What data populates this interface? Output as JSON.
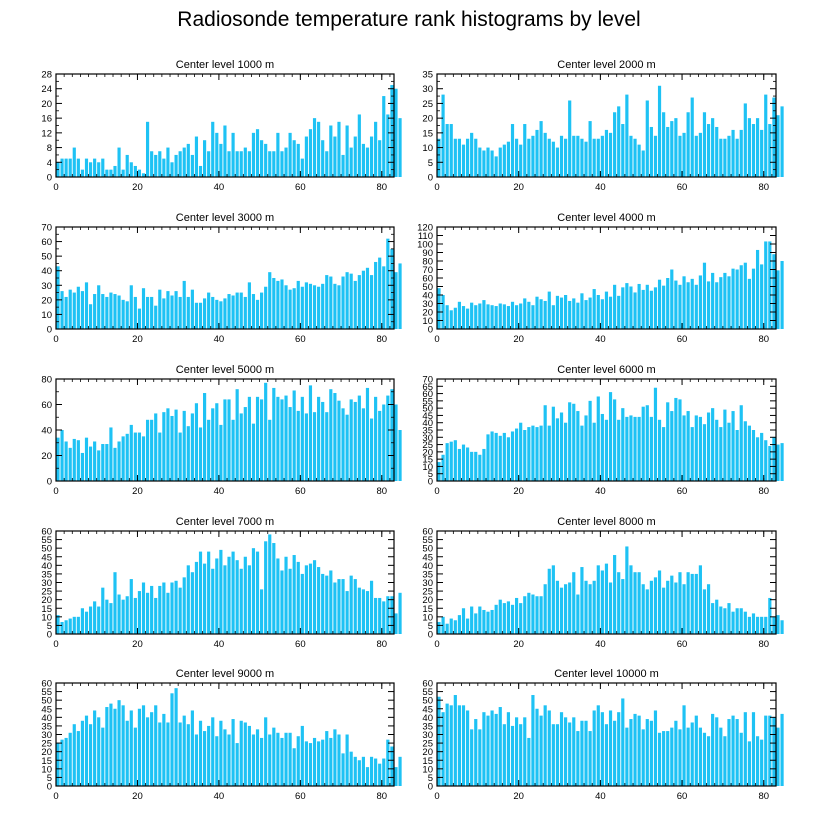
{
  "title": "Radiosonde temperature rank histograms by level",
  "colors": {
    "bar": "#1EC2F4",
    "axis": "#000000",
    "text": "#000000"
  },
  "chart_data": [
    {
      "type": "bar",
      "title": "Center level 1000 m",
      "xlim": [
        0,
        83
      ],
      "ylim": [
        0,
        28
      ],
      "xticks": [
        0,
        20,
        40,
        60,
        80
      ],
      "yticks": [
        0,
        4,
        8,
        12,
        16,
        20,
        24,
        28
      ],
      "values": [
        4,
        5,
        5,
        5,
        8,
        5,
        2,
        5,
        4,
        5,
        4,
        5,
        2,
        2,
        3,
        8,
        2,
        6,
        4,
        3,
        2,
        1,
        15,
        7,
        6,
        7,
        5,
        8,
        4,
        6,
        7,
        8,
        9,
        6,
        11,
        3,
        10,
        7,
        15,
        12,
        9,
        14,
        7,
        12,
        7,
        7,
        8,
        7,
        12,
        13,
        10,
        9,
        7,
        7,
        12,
        7,
        8,
        12,
        10,
        9,
        5,
        11,
        13,
        16,
        15,
        10,
        7,
        14,
        11,
        15,
        6,
        14,
        8,
        11,
        17,
        9,
        8,
        11,
        15,
        10,
        22,
        17,
        25,
        24,
        16
      ],
      "xlabel": "",
      "ylabel": ""
    },
    {
      "type": "bar",
      "title": "Center level 2000 m",
      "xlim": [
        0,
        83
      ],
      "ylim": [
        0,
        35
      ],
      "xticks": [
        0,
        20,
        40,
        60,
        80
      ],
      "yticks": [
        0,
        5,
        10,
        15,
        20,
        25,
        30,
        35
      ],
      "values": [
        13,
        28,
        18,
        18,
        13,
        13,
        11,
        13,
        15,
        13,
        10,
        9,
        10,
        9,
        7,
        10,
        11,
        12,
        18,
        13,
        11,
        18,
        13,
        14,
        16,
        19,
        15,
        13,
        12,
        10,
        14,
        13,
        26,
        14,
        14,
        13,
        12,
        19,
        13,
        13,
        14,
        16,
        15,
        22,
        24,
        18,
        28,
        14,
        13,
        11,
        9,
        26,
        17,
        14,
        31,
        22,
        17,
        19,
        20,
        14,
        15,
        22,
        27,
        14,
        15,
        22,
        18,
        20,
        17,
        13,
        13,
        14,
        16,
        13,
        16,
        25,
        20,
        18,
        20,
        16,
        28,
        18,
        27,
        21,
        24
      ],
      "xlabel": "",
      "ylabel": ""
    },
    {
      "type": "bar",
      "title": "Center level 3000 m",
      "xlim": [
        0,
        83
      ],
      "ylim": [
        0,
        70
      ],
      "xticks": [
        0,
        20,
        40,
        60,
        80
      ],
      "yticks": [
        0,
        10,
        20,
        30,
        40,
        50,
        60,
        70
      ],
      "values": [
        43,
        26,
        22,
        27,
        25,
        29,
        26,
        32,
        17,
        24,
        30,
        24,
        22,
        25,
        24,
        23,
        20,
        19,
        30,
        22,
        14,
        28,
        22,
        22,
        16,
        27,
        21,
        26,
        23,
        26,
        22,
        33,
        22,
        27,
        18,
        18,
        21,
        25,
        22,
        20,
        19,
        21,
        24,
        23,
        25,
        25,
        22,
        32,
        24,
        20,
        25,
        29,
        39,
        35,
        33,
        34,
        30,
        27,
        28,
        33,
        29,
        32,
        31,
        30,
        29,
        31,
        37,
        36,
        31,
        30,
        36,
        39,
        38,
        33,
        37,
        40,
        42,
        37,
        46,
        49,
        43,
        62,
        55,
        39,
        45
      ],
      "xlabel": "",
      "ylabel": ""
    },
    {
      "type": "bar",
      "title": "Center level 4000 m",
      "xlim": [
        0,
        83
      ],
      "ylim": [
        0,
        120
      ],
      "xticks": [
        0,
        20,
        40,
        60,
        80
      ],
      "yticks": [
        0,
        10,
        20,
        30,
        40,
        50,
        60,
        70,
        80,
        90,
        100,
        110,
        120
      ],
      "values": [
        48,
        40,
        28,
        22,
        25,
        32,
        27,
        24,
        31,
        28,
        30,
        34,
        29,
        28,
        27,
        30,
        29,
        27,
        32,
        28,
        30,
        36,
        32,
        28,
        38,
        35,
        33,
        44,
        28,
        39,
        37,
        40,
        33,
        36,
        31,
        42,
        34,
        37,
        47,
        40,
        35,
        44,
        38,
        52,
        39,
        49,
        54,
        50,
        43,
        53,
        46,
        52,
        45,
        49,
        58,
        51,
        60,
        70,
        57,
        52,
        62,
        55,
        59,
        52,
        63,
        78,
        56,
        66,
        55,
        61,
        66,
        62,
        71,
        70,
        75,
        78,
        59,
        71,
        93,
        76,
        103,
        103,
        88,
        69,
        80
      ],
      "xlabel": "",
      "ylabel": ""
    },
    {
      "type": "bar",
      "title": "Center level 5000 m",
      "xlim": [
        0,
        83
      ],
      "ylim": [
        0,
        80
      ],
      "xticks": [
        0,
        20,
        40,
        60,
        80
      ],
      "yticks": [
        0,
        20,
        40,
        60,
        80
      ],
      "values": [
        34,
        40,
        31,
        26,
        33,
        32,
        22,
        34,
        27,
        31,
        24,
        29,
        29,
        42,
        26,
        31,
        35,
        37,
        44,
        38,
        38,
        35,
        48,
        48,
        53,
        38,
        54,
        57,
        51,
        56,
        38,
        55,
        43,
        53,
        61,
        42,
        69,
        48,
        57,
        61,
        44,
        64,
        64,
        48,
        72,
        53,
        58,
        66,
        45,
        66,
        64,
        77,
        48,
        73,
        66,
        64,
        67,
        58,
        71,
        55,
        66,
        53,
        75,
        54,
        66,
        62,
        54,
        72,
        69,
        63,
        57,
        52,
        64,
        62,
        67,
        57,
        73,
        49,
        66,
        55,
        60,
        67,
        72,
        60,
        40
      ],
      "xlabel": "",
      "ylabel": ""
    },
    {
      "type": "bar",
      "title": "Center level 6000 m",
      "xlim": [
        0,
        83
      ],
      "ylim": [
        0,
        70
      ],
      "xticks": [
        0,
        20,
        40,
        60,
        80
      ],
      "yticks": [
        0,
        5,
        10,
        15,
        20,
        25,
        30,
        35,
        40,
        45,
        50,
        55,
        60,
        65,
        70
      ],
      "values": [
        13,
        18,
        26,
        27,
        28,
        22,
        25,
        23,
        20,
        20,
        18,
        22,
        32,
        34,
        33,
        31,
        33,
        30,
        34,
        36,
        40,
        35,
        37,
        38,
        37,
        38,
        52,
        38,
        51,
        43,
        47,
        40,
        54,
        53,
        48,
        38,
        45,
        55,
        40,
        58,
        46,
        42,
        61,
        56,
        42,
        50,
        44,
        45,
        44,
        44,
        51,
        52,
        44,
        64,
        42,
        37,
        54,
        48,
        57,
        56,
        45,
        48,
        37,
        45,
        44,
        39,
        47,
        50,
        42,
        37,
        49,
        40,
        48,
        35,
        52,
        41,
        38,
        35,
        30,
        33,
        28,
        24,
        30,
        25,
        26
      ],
      "xlabel": "",
      "ylabel": ""
    },
    {
      "type": "bar",
      "title": "Center level 7000 m",
      "xlim": [
        0,
        83
      ],
      "ylim": [
        0,
        60
      ],
      "xticks": [
        0,
        20,
        40,
        60,
        80
      ],
      "yticks": [
        0,
        5,
        10,
        15,
        20,
        25,
        30,
        35,
        40,
        45,
        50,
        55,
        60
      ],
      "values": [
        11,
        7,
        8,
        9,
        10,
        10,
        15,
        13,
        16,
        19,
        16,
        27,
        20,
        18,
        36,
        23,
        20,
        22,
        32,
        21,
        25,
        30,
        24,
        28,
        21,
        28,
        30,
        24,
        30,
        31,
        27,
        33,
        40,
        36,
        42,
        48,
        41,
        48,
        38,
        44,
        49,
        40,
        45,
        48,
        43,
        38,
        45,
        40,
        50,
        48,
        26,
        54,
        58,
        53,
        44,
        37,
        45,
        38,
        46,
        42,
        35,
        40,
        41,
        43,
        39,
        35,
        34,
        37,
        30,
        32,
        32,
        25,
        34,
        32,
        27,
        26,
        25,
        31,
        21,
        21,
        19,
        22,
        22,
        12,
        24
      ],
      "xlabel": "",
      "ylabel": ""
    },
    {
      "type": "bar",
      "title": "Center level 8000 m",
      "xlim": [
        0,
        83
      ],
      "ylim": [
        0,
        60
      ],
      "xticks": [
        0,
        20,
        40,
        60,
        80
      ],
      "yticks": [
        0,
        5,
        10,
        15,
        20,
        25,
        30,
        35,
        40,
        45,
        50,
        55,
        60
      ],
      "values": [
        7,
        10,
        6,
        9,
        8,
        11,
        15,
        9,
        16,
        12,
        16,
        14,
        13,
        14,
        17,
        20,
        18,
        19,
        17,
        21,
        18,
        22,
        24,
        23,
        22,
        22,
        29,
        38,
        40,
        31,
        27,
        29,
        30,
        36,
        23,
        39,
        31,
        29,
        31,
        40,
        37,
        41,
        30,
        46,
        36,
        32,
        51,
        40,
        36,
        36,
        29,
        26,
        31,
        33,
        37,
        27,
        31,
        34,
        30,
        36,
        29,
        36,
        35,
        35,
        40,
        26,
        29,
        18,
        20,
        16,
        15,
        18,
        13,
        15,
        15,
        13,
        10,
        12,
        10,
        10,
        10,
        21,
        10,
        11,
        8
      ],
      "xlabel": "",
      "ylabel": ""
    },
    {
      "type": "bar",
      "title": "Center level 9000 m",
      "xlim": [
        0,
        83
      ],
      "ylim": [
        0,
        60
      ],
      "xticks": [
        0,
        20,
        40,
        60,
        80
      ],
      "yticks": [
        0,
        5,
        10,
        15,
        20,
        25,
        30,
        35,
        40,
        45,
        50,
        55,
        60
      ],
      "values": [
        25,
        27,
        28,
        31,
        36,
        32,
        38,
        41,
        36,
        44,
        40,
        34,
        46,
        48,
        45,
        50,
        47,
        38,
        44,
        34,
        45,
        47,
        40,
        43,
        47,
        37,
        42,
        37,
        54,
        57,
        37,
        41,
        36,
        44,
        30,
        38,
        32,
        35,
        40,
        29,
        38,
        33,
        30,
        39,
        25,
        38,
        37,
        35,
        30,
        33,
        28,
        40,
        30,
        34,
        31,
        28,
        31,
        31,
        22,
        29,
        35,
        26,
        25,
        28,
        26,
        27,
        32,
        28,
        33,
        30,
        19,
        30,
        20,
        17,
        15,
        17,
        11,
        17,
        16,
        13,
        16,
        27,
        23,
        11,
        17
      ],
      "xlabel": "",
      "ylabel": ""
    },
    {
      "type": "bar",
      "title": "Center level 10000 m",
      "xlim": [
        0,
        83
      ],
      "ylim": [
        0,
        60
      ],
      "xticks": [
        0,
        20,
        40,
        60,
        80
      ],
      "yticks": [
        0,
        5,
        10,
        15,
        20,
        25,
        30,
        35,
        40,
        45,
        50,
        55,
        60
      ],
      "values": [
        52,
        43,
        48,
        47,
        53,
        47,
        47,
        44,
        33,
        39,
        33,
        43,
        41,
        44,
        42,
        46,
        36,
        43,
        35,
        40,
        36,
        40,
        28,
        53,
        45,
        41,
        47,
        44,
        36,
        36,
        43,
        40,
        37,
        40,
        32,
        38,
        38,
        32,
        44,
        47,
        43,
        36,
        44,
        38,
        43,
        51,
        34,
        39,
        42,
        41,
        33,
        39,
        38,
        44,
        31,
        32,
        32,
        34,
        38,
        33,
        47,
        34,
        37,
        41,
        34,
        31,
        29,
        42,
        40,
        34,
        29,
        39,
        41,
        39,
        31,
        43,
        26,
        43,
        29,
        27,
        41,
        41,
        40,
        34,
        42
      ],
      "xlabel": "",
      "ylabel": ""
    }
  ]
}
